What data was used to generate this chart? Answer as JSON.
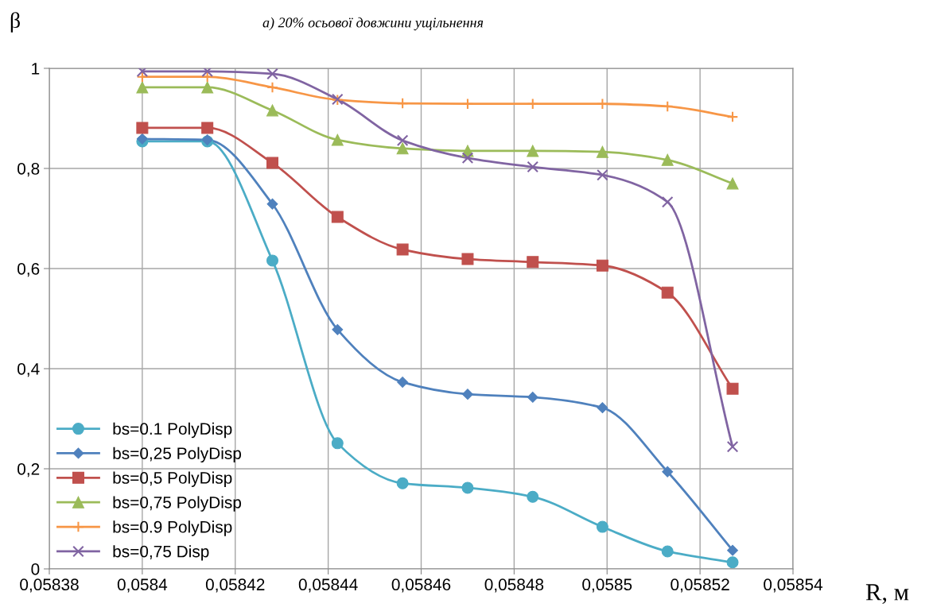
{
  "chart_data": {
    "type": "line",
    "title": "а) 20% осьової довжини ущільнення",
    "xlabel": "R, м",
    "ylabel": "β",
    "x": [
      0.0584,
      0.058414,
      0.058428,
      0.058442,
      0.058456,
      0.05847,
      0.058484,
      0.058499,
      0.058513,
      0.058527
    ],
    "series": [
      {
        "name": "bs=0.1 PolyDisp",
        "color": "#4bacc6",
        "marker": "circle",
        "values": [
          0.854,
          0.854,
          0.616,
          0.251,
          0.171,
          0.162,
          0.144,
          0.084,
          0.035,
          0.013
        ]
      },
      {
        "name": "bs=0,25 PolyDisp",
        "color": "#4f81bd",
        "marker": "diamond",
        "values": [
          0.859,
          0.857,
          0.729,
          0.478,
          0.373,
          0.349,
          0.343,
          0.322,
          0.194,
          0.037
        ]
      },
      {
        "name": "bs=0,5 PolyDisp",
        "color": "#c0504d",
        "marker": "square",
        "values": [
          0.881,
          0.881,
          0.811,
          0.703,
          0.638,
          0.619,
          0.613,
          0.606,
          0.552,
          0.36
        ]
      },
      {
        "name": "bs=0,75 PolyDisp",
        "color": "#9bbb59",
        "marker": "triangle",
        "values": [
          0.962,
          0.962,
          0.916,
          0.857,
          0.84,
          0.835,
          0.835,
          0.833,
          0.817,
          0.77
        ]
      },
      {
        "name": "bs=0.9 PolyDisp",
        "color": "#f79646",
        "marker": "plus",
        "values": [
          0.983,
          0.983,
          0.962,
          0.937,
          0.93,
          0.929,
          0.929,
          0.929,
          0.924,
          0.903
        ]
      },
      {
        "name": "bs=0,75 Disp",
        "color": "#8064a2",
        "marker": "cross",
        "values": [
          0.994,
          0.994,
          0.989,
          0.938,
          0.856,
          0.821,
          0.803,
          0.787,
          0.733,
          0.244
        ]
      }
    ],
    "xlim": [
      0.05838,
      0.05854
    ],
    "xticks": [
      {
        "value": 0.05838,
        "label": "0,05838"
      },
      {
        "value": 0.0584,
        "label": "0,0584"
      },
      {
        "value": 0.05842,
        "label": "0,05842"
      },
      {
        "value": 0.05844,
        "label": "0,05844"
      },
      {
        "value": 0.05846,
        "label": "0,05846"
      },
      {
        "value": 0.05848,
        "label": "0,05848"
      },
      {
        "value": 0.0585,
        "label": "0,0585"
      },
      {
        "value": 0.05852,
        "label": "0,05852"
      },
      {
        "value": 0.05854,
        "label": "0,05854"
      }
    ],
    "ylim": [
      0,
      1
    ],
    "yticks": [
      0,
      {
        "value": 0.2,
        "label": "0,2"
      },
      {
        "value": 0.4,
        "label": "0,4"
      },
      {
        "value": 0.6,
        "label": "0,6"
      },
      {
        "value": 0.8,
        "label": "0,8"
      },
      1
    ],
    "grid": true,
    "legend": "bottom left",
    "line_style": "solid"
  }
}
